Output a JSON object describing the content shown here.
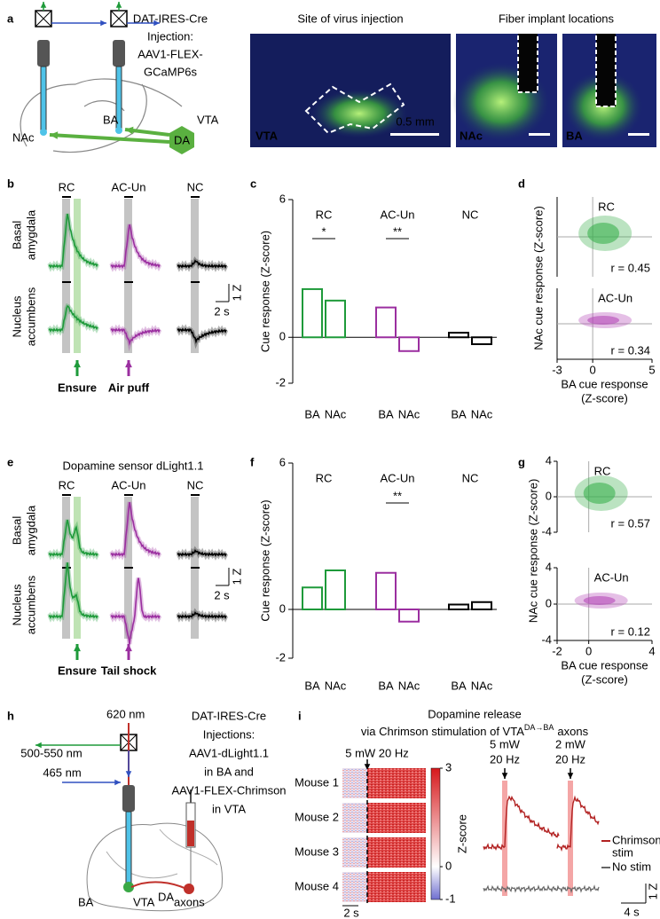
{
  "panel_labels": [
    "a",
    "b",
    "c",
    "d",
    "e",
    "f",
    "g",
    "h",
    "i"
  ],
  "a": {
    "construct": [
      "DAT-IRES-Cre",
      "Injection:",
      "AAV1-FLEX-",
      "GCaMP6s"
    ],
    "regions": {
      "nac": "NAc",
      "ba": "BA",
      "vta": "VTA",
      "da": "DA"
    },
    "image_titles": [
      "Site of virus injection",
      "Fiber implant locations"
    ],
    "image_labels": [
      "VTA",
      "NAc",
      "BA"
    ],
    "scale_label": "0.5 mm"
  },
  "b": {
    "columns": [
      "RC",
      "AC-Un",
      "NC"
    ],
    "rows": [
      [
        "Basal",
        "amygdala"
      ],
      [
        "Nucleus",
        "accumbens"
      ]
    ],
    "scale_y": "1 Z",
    "scale_x": "2 s",
    "outcomes": [
      "Ensure",
      "Air puff"
    ]
  },
  "e": {
    "title": "Dopamine sensor dLight1.1",
    "columns": [
      "RC",
      "AC-Un",
      "NC"
    ],
    "rows": [
      [
        "Basal",
        "amygdala"
      ],
      [
        "Nucleus",
        "accumbens"
      ]
    ],
    "scale_y": "1 Z",
    "scale_x": "2 s",
    "outcomes": [
      "Ensure",
      "Tail shock"
    ]
  },
  "chart_data": [
    {
      "type": "bar",
      "ylabel": "Cue response (Z-score)",
      "categories": [
        "BA",
        "NAc"
      ],
      "ylim": [
        -2,
        6
      ],
      "yticks": [
        -2,
        0,
        6
      ],
      "series": [
        {
          "name": "RC",
          "color": "#1e9a3a",
          "values": [
            2.1,
            1.6
          ],
          "significance": "*"
        },
        {
          "name": "AC-Un",
          "color": "#9b2fa0",
          "values": [
            1.3,
            -0.6
          ],
          "significance": "**"
        },
        {
          "name": "NC",
          "color": "#000000",
          "values": [
            0.2,
            -0.3
          ]
        }
      ]
    },
    {
      "type": "scatter",
      "ylabel": "NAc cue response (Z-score)",
      "xlabel": [
        "BA cue response",
        "(Z-score)"
      ],
      "xlim": [
        -3,
        5
      ],
      "xticks": [
        -3,
        0,
        5
      ],
      "panels": [
        {
          "title": "RC",
          "color": "#3bb04e",
          "r": "r = 0.45"
        },
        {
          "title": "AC-Un",
          "color": "#b449b8",
          "r": "r = 0.34"
        }
      ]
    },
    {
      "type": "bar",
      "ylabel": "Cue response (Z-score)",
      "categories": [
        "BA",
        "NAc"
      ],
      "ylim": [
        -2,
        6
      ],
      "yticks": [
        -2,
        0,
        6
      ],
      "series": [
        {
          "name": "RC",
          "color": "#1e9a3a",
          "values": [
            0.9,
            1.6
          ]
        },
        {
          "name": "AC-Un",
          "color": "#9b2fa0",
          "values": [
            1.5,
            -0.5
          ],
          "significance": "**"
        },
        {
          "name": "NC",
          "color": "#000000",
          "values": [
            0.2,
            0.3
          ]
        }
      ]
    },
    {
      "type": "scatter",
      "ylabel": "NAc cue response (Z-score)",
      "xlabel": [
        "BA cue response",
        "(Z-score)"
      ],
      "xlim": [
        -2,
        4
      ],
      "xticks": [
        -2,
        0,
        4
      ],
      "ylim": [
        -4,
        4
      ],
      "yticks": [
        -4,
        0,
        4
      ],
      "panels": [
        {
          "title": "RC",
          "color": "#3bb04e",
          "r": "r = 0.57"
        },
        {
          "title": "AC-Un",
          "color": "#b449b8",
          "r": "r = 0.12"
        }
      ]
    }
  ],
  "h": {
    "wavelengths": [
      "620 nm",
      "500-550 nm",
      "465 nm"
    ],
    "construct": [
      "DAT-IRES-Cre",
      "Injections:",
      "AAV1-dLight1.1",
      "in BA and",
      "AAV1-FLEX-Chrimson",
      "in VTA"
    ],
    "regions": {
      "ba": "BA",
      "vta": "VTA",
      "vta_sup": "DA",
      "axons": "axons"
    }
  },
  "i": {
    "title": "Dopamine release",
    "title_start": "via Chrimson stimulation of VTA",
    "title_sup": "DA→BA",
    "title_end": "axons",
    "stim": "5 mW 20 Hz",
    "mice": [
      "Mouse 1",
      "Mouse 2",
      "Mouse 3",
      "Mouse 4"
    ],
    "colorbar": {
      "label": "Z-score",
      "lim": [
        -1,
        3
      ],
      "ticks": [
        -1,
        0,
        3
      ]
    },
    "time_scale": "2 s",
    "conditions": [
      [
        "5 mW",
        "20 Hz"
      ],
      [
        "2 mW",
        "20 Hz"
      ]
    ],
    "legend": [
      [
        "Chrimson",
        "stim"
      ],
      [
        "No stim"
      ]
    ],
    "scale_y": "1 Z",
    "scale_x": "4 s"
  }
}
